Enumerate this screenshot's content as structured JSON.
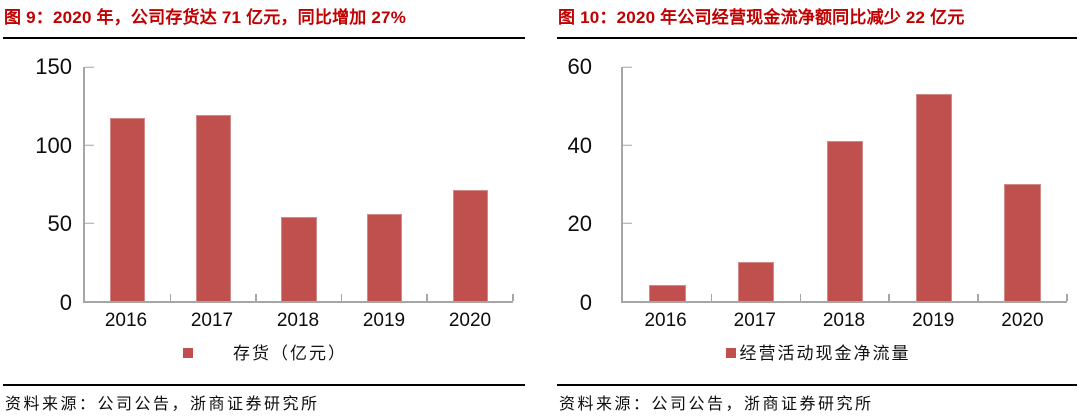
{
  "colors": {
    "bar": "#c0504d",
    "title": "#c00000",
    "axis": "#a6a6a6"
  },
  "chart_data": [
    {
      "type": "bar",
      "title": "图 9：2020 年，公司存货达 71 亿元，同比增加 27%",
      "categories": [
        "2016",
        "2017",
        "2018",
        "2019",
        "2020"
      ],
      "values": [
        117,
        119,
        54,
        56,
        71
      ],
      "legend": "存货（亿元）",
      "xlabel": "",
      "ylabel": "",
      "ylim": [
        0,
        150
      ],
      "yticks": [
        0,
        50,
        100,
        150
      ],
      "grid": false,
      "legend_position": "bottom",
      "source": "资料来源：公司公告，浙商证券研究所"
    },
    {
      "type": "bar",
      "title": "图 10：2020 年公司经营现金流净额同比减少 22 亿元",
      "categories": [
        "2016",
        "2017",
        "2018",
        "2019",
        "2020"
      ],
      "values": [
        4,
        10,
        41,
        53,
        30
      ],
      "legend": "经营活动现金净流量",
      "xlabel": "",
      "ylabel": "",
      "ylim": [
        0,
        60
      ],
      "yticks": [
        0,
        20,
        40,
        60
      ],
      "grid": false,
      "legend_position": "bottom",
      "source": "资料来源：公司公告，浙商证券研究所"
    }
  ]
}
